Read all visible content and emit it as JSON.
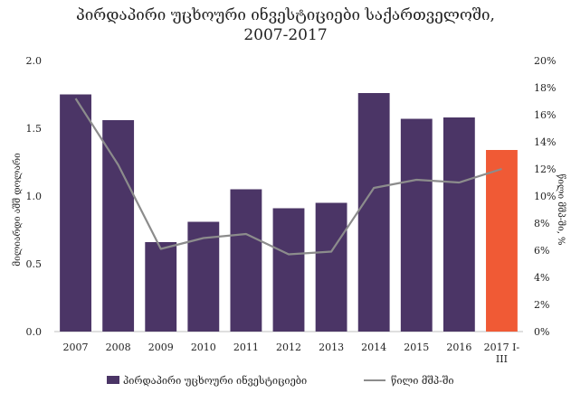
{
  "chart_data": {
    "type": "bar",
    "title_line1": "პირდაპირი უცხოური ინვესტიციები საქართველოში,",
    "title_line2": "2007-2017",
    "categories": [
      "2007",
      "2008",
      "2009",
      "2010",
      "2011",
      "2012",
      "2013",
      "2014",
      "2015",
      "2016",
      "2017 I-III"
    ],
    "series": [
      {
        "name": "პირდაპირი უცხოური ინვესტიციები",
        "type": "bar",
        "axis": "left",
        "values": [
          1.75,
          1.56,
          0.66,
          0.81,
          1.05,
          0.91,
          0.95,
          1.76,
          1.57,
          1.58,
          1.34
        ],
        "color": "#4b3566",
        "highlight": {
          "index": 10,
          "color": "#f05a35"
        }
      },
      {
        "name": "წილი მშპ-ში",
        "type": "line",
        "axis": "right",
        "values": [
          17.2,
          12.3,
          6.1,
          6.9,
          7.2,
          5.7,
          5.9,
          10.6,
          11.2,
          11.0,
          12.0
        ],
        "color": "#8c8c8c"
      }
    ],
    "ylabel_left": "მილიარდი აშშ დოლარი",
    "ylabel_right": "წილი მშპ-ში, %",
    "ylim_left": [
      0,
      2.0
    ],
    "ylim_right": [
      0,
      20
    ],
    "yticks_left": [
      "0.0",
      "0.5",
      "1.0",
      "1.5",
      "2.0"
    ],
    "yticks_right": [
      "0%",
      "2%",
      "4%",
      "6%",
      "8%",
      "10%",
      "12%",
      "14%",
      "16%",
      "18%",
      "20%"
    ],
    "grid": false,
    "legend_position": "bottom"
  }
}
